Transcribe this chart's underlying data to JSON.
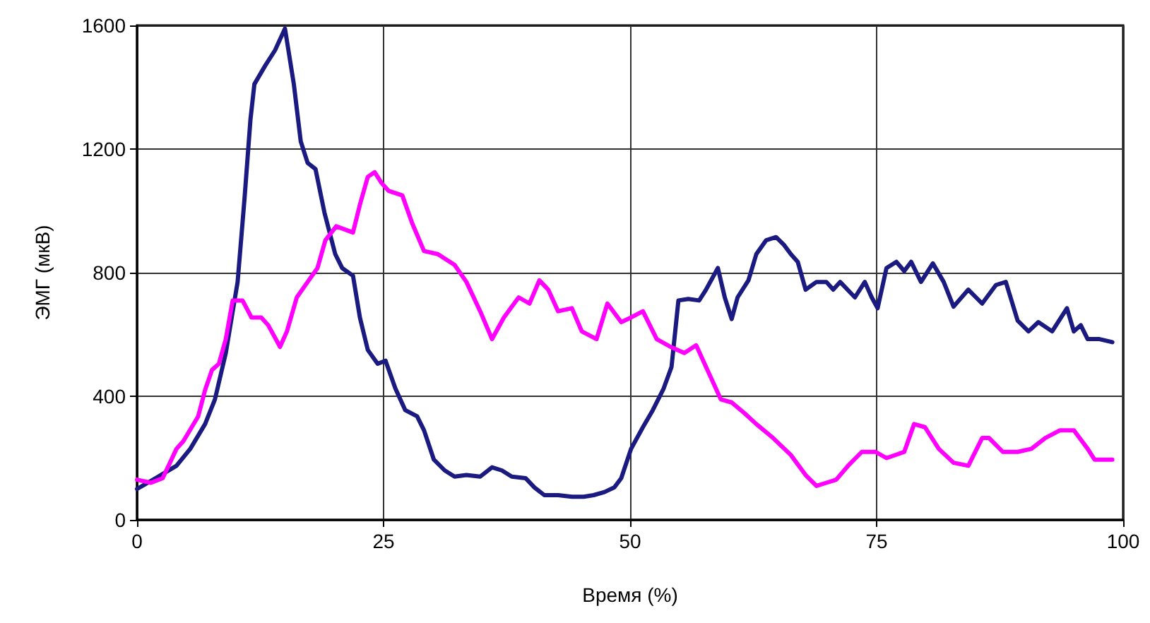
{
  "chart_data": {
    "type": "line",
    "xlabel": "Время (%)",
    "ylabel": "ЭМГ (мкВ)",
    "xlim": [
      0,
      100
    ],
    "xticks": [
      0,
      25,
      50,
      75,
      100
    ],
    "ylim": [
      0,
      1600
    ],
    "yticks": [
      0,
      400,
      800,
      1200,
      1600
    ],
    "grid": true,
    "marker": "none",
    "line_style": "solid",
    "series": [
      {
        "color": "#1a1a80",
        "x": [
          0,
          1.9,
          4,
          5.4,
          6.9,
          7.9,
          9,
          10.2,
          10.9,
          11.5,
          11.9,
          13,
          14,
          15,
          15.9,
          16.6,
          17.3,
          18.1,
          19,
          20.1,
          20.8,
          21.9,
          22.6,
          23.4,
          24.4,
          25.2,
          26.2,
          27.2,
          28.4,
          29.1,
          30.1,
          31.2,
          32.2,
          33.4,
          34.8,
          36,
          37,
          38,
          39.4,
          40.3,
          41.3,
          42.7,
          44.1,
          45.3,
          46.3,
          47.4,
          48.4,
          49.1,
          50.1,
          51.3,
          52.3,
          53.4,
          54.2,
          54.9,
          55.9,
          57,
          57.7,
          58.9,
          59.6,
          60.3,
          60.9,
          62,
          62.8,
          63.8,
          64.8,
          65.6,
          66.3,
          67,
          67.8,
          68.9,
          69.9,
          70.6,
          71.3,
          72.8,
          73.8,
          74.5,
          75.1,
          76,
          77,
          77.8,
          78.5,
          79.5,
          80.7,
          81.8,
          82.8,
          84.3,
          85.7,
          87.1,
          88.1,
          89.3,
          90.4,
          91.4,
          92.8,
          94.3,
          95,
          95.7,
          96.4,
          97.6,
          98.9
        ],
        "values": [
          100,
          135,
          175,
          230,
          310,
          390,
          540,
          770,
          1040,
          1295,
          1410,
          1470,
          1520,
          1590,
          1410,
          1225,
          1155,
          1135,
          995,
          860,
          815,
          790,
          655,
          550,
          505,
          515,
          425,
          355,
          335,
          290,
          195,
          160,
          140,
          145,
          140,
          170,
          160,
          140,
          135,
          105,
          80,
          80,
          75,
          75,
          80,
          90,
          105,
          135,
          230,
          300,
          355,
          425,
          495,
          710,
          715,
          710,
          745,
          815,
          720,
          650,
          720,
          775,
          860,
          905,
          915,
          890,
          860,
          835,
          745,
          770,
          770,
          745,
          770,
          720,
          770,
          720,
          685,
          815,
          835,
          805,
          835,
          770,
          830,
          770,
          690,
          745,
          700,
          760,
          770,
          645,
          610,
          640,
          610,
          685,
          610,
          630,
          585,
          585,
          575
        ]
      },
      {
        "color": "#ff00ff",
        "x": [
          0,
          1.4,
          2.6,
          4,
          4.7,
          6.2,
          6.9,
          7.6,
          8.3,
          9,
          9.7,
          10.7,
          11.6,
          12.6,
          13.3,
          14.5,
          15.2,
          16.2,
          17.3,
          18.3,
          19.1,
          20.2,
          21.9,
          22.6,
          23.4,
          24.1,
          24.8,
          25.5,
          26.9,
          27.9,
          29.1,
          30.5,
          32.2,
          33.4,
          34.8,
          36,
          37.2,
          38.7,
          39.8,
          40.8,
          41.7,
          42.7,
          44.1,
          45.1,
          46.6,
          47.7,
          49.1,
          50.1,
          51.3,
          52.7,
          54.1,
          55.5,
          56.7,
          57.7,
          59.2,
          60.3,
          61.6,
          62.8,
          64.5,
          66.3,
          67.8,
          68.9,
          69.9,
          70.9,
          72.1,
          73.5,
          74.9,
          76,
          77.8,
          78.8,
          79.9,
          81.3,
          82.8,
          84.3,
          85.7,
          86.4,
          87.8,
          89.3,
          90.7,
          92.1,
          93.6,
          95,
          96.4,
          97.1,
          98.9
        ],
        "values": [
          130,
          120,
          135,
          230,
          255,
          335,
          420,
          485,
          505,
          585,
          710,
          710,
          655,
          655,
          630,
          560,
          610,
          720,
          770,
          815,
          905,
          950,
          930,
          1020,
          1110,
          1125,
          1090,
          1065,
          1050,
          960,
          870,
          860,
          825,
          770,
          675,
          585,
          655,
          720,
          700,
          775,
          745,
          675,
          685,
          610,
          585,
          700,
          640,
          655,
          675,
          585,
          560,
          540,
          565,
          495,
          390,
          380,
          345,
          310,
          265,
          210,
          145,
          110,
          120,
          130,
          175,
          220,
          220,
          200,
          220,
          310,
          300,
          230,
          185,
          175,
          265,
          265,
          220,
          220,
          230,
          265,
          290,
          290,
          230,
          195,
          195
        ]
      }
    ]
  }
}
